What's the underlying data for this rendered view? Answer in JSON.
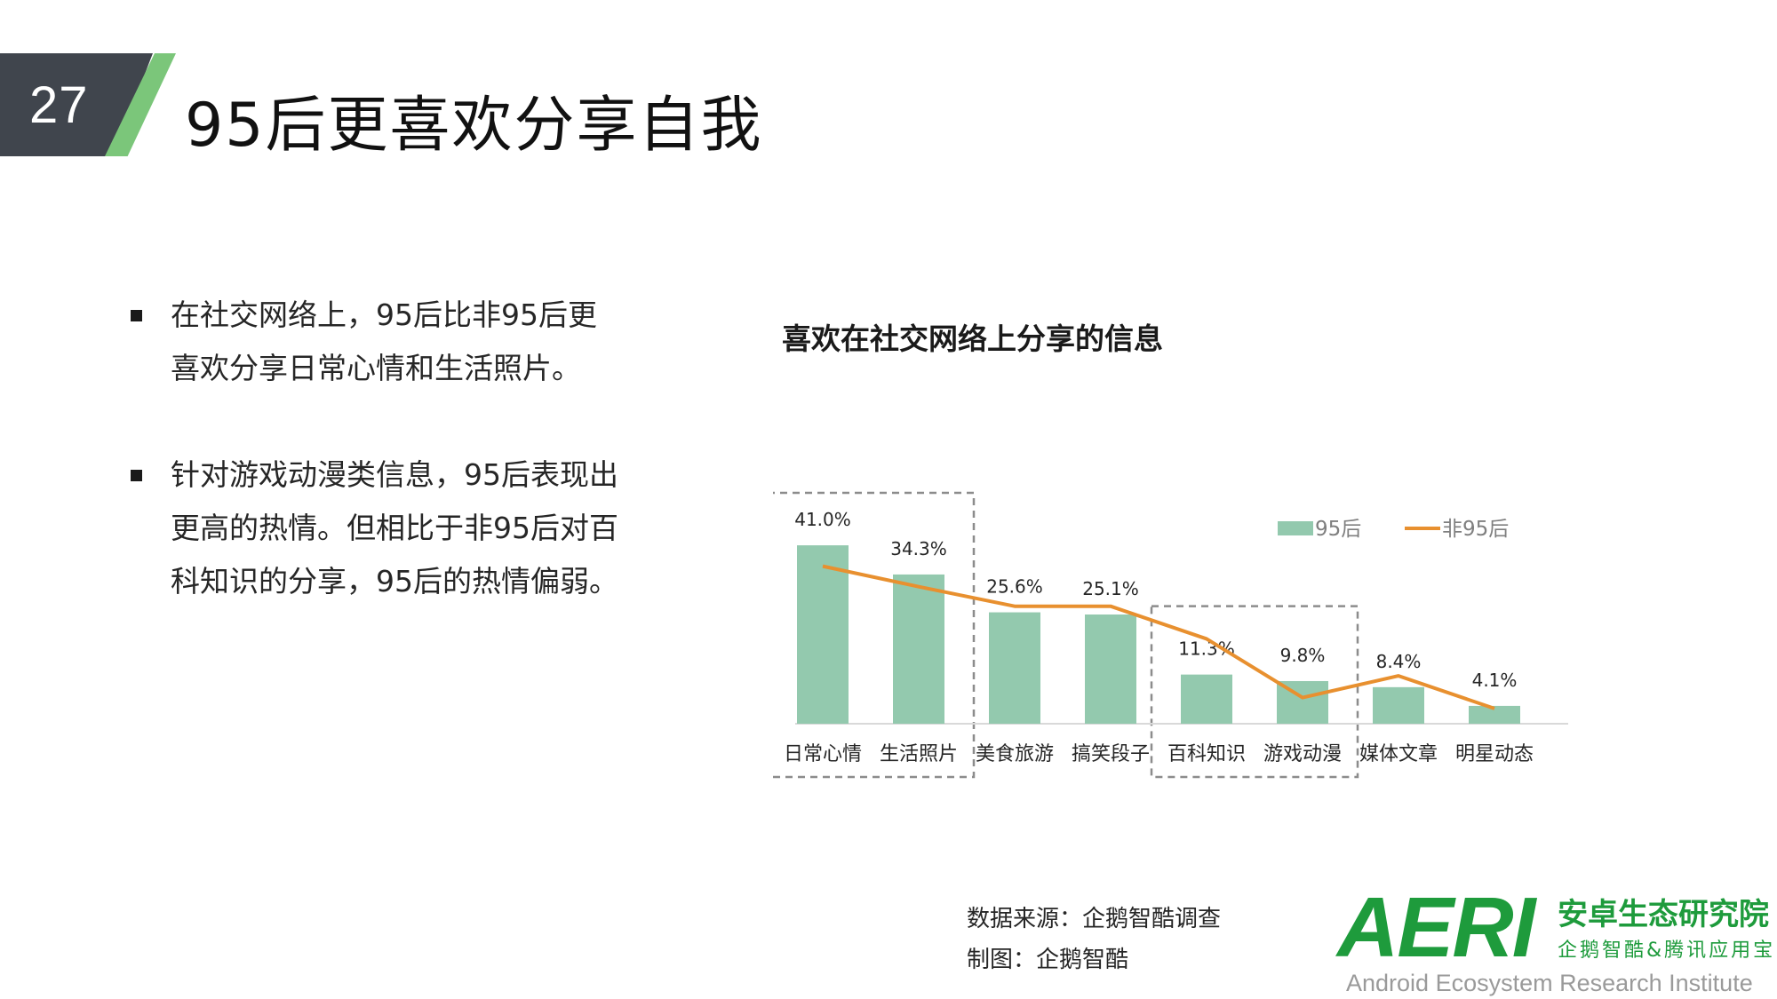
{
  "slide": {
    "number": "27",
    "title": "95后更喜欢分享自我"
  },
  "bullets": [
    {
      "text": "在社交网络上，95后比非95后更喜欢分享日常心情和生活照片。"
    },
    {
      "text": "针对游戏动漫类信息，95后表现出更高的热情。但相比于非95后对百科知识的分享，95后的热情偏弱。"
    }
  ],
  "chart_title": "喜欢在社交网络上分享的信息",
  "chart_data": {
    "type": "bar",
    "title": "喜欢在社交网络上分享的信息",
    "xlabel": "",
    "ylabel": "",
    "categories": [
      "日常心情",
      "生活照片",
      "美食旅游",
      "搞笑段子",
      "百科知识",
      "游戏动漫",
      "媒体文章",
      "明星动态"
    ],
    "series": [
      {
        "name": "95后",
        "type": "bar",
        "color": "#93c9ae",
        "values": [
          41.0,
          34.3,
          25.6,
          25.1,
          11.3,
          9.8,
          8.4,
          4.1
        ],
        "labels": [
          "41.0%",
          "34.3%",
          "25.6%",
          "25.1%",
          "11.3%",
          "9.8%",
          "8.4%",
          "4.1%"
        ]
      },
      {
        "name": "非95后",
        "type": "line",
        "color": "#e8902f",
        "values": [
          36.2,
          31.5,
          27.0,
          27.0,
          19.5,
          6.0,
          11.0,
          3.5
        ]
      }
    ],
    "ylim": [
      0,
      50
    ],
    "grid": false,
    "legend": "top-right",
    "highlight_groups": [
      [
        "日常心情",
        "生活照片"
      ],
      [
        "百科知识",
        "游戏动漫"
      ]
    ]
  },
  "source": {
    "line1": "数据来源：企鹅智酷调查",
    "line2": "制图：企鹅智酷"
  },
  "logo": {
    "mark": "AERI",
    "cn": "安卓生态研究院",
    "sub": "企鹅智酷&腾讯应用宝",
    "en": "Android Ecosystem Research Institute",
    "color": "#1e9b3c"
  }
}
